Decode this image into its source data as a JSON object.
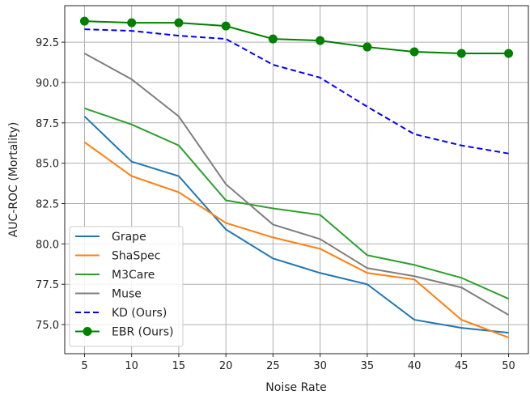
{
  "chart_data": {
    "type": "line",
    "xlabel": "Noise Rate",
    "ylabel": "AUC-ROC (Mortality)",
    "x": [
      5,
      10,
      15,
      20,
      25,
      30,
      35,
      40,
      45,
      50
    ],
    "xlim": [
      2.9,
      52.1
    ],
    "ylim": [
      73.2,
      94.76
    ],
    "xticks": [
      "5",
      "10",
      "15",
      "20",
      "25",
      "30",
      "35",
      "40",
      "45",
      "50"
    ],
    "yticks": [
      "75.0",
      "77.5",
      "80.0",
      "82.5",
      "85.0",
      "87.5",
      "90.0",
      "92.5"
    ],
    "grid": true,
    "legend_position": "lower-left",
    "series": [
      {
        "name": "Grape",
        "color": "#1f77b4",
        "style": "solid",
        "marker": false,
        "values": [
          87.9,
          85.1,
          84.2,
          80.9,
          79.1,
          78.2,
          77.5,
          75.3,
          74.8,
          74.5
        ]
      },
      {
        "name": "ShaSpec",
        "color": "#ff7f0e",
        "style": "solid",
        "marker": false,
        "values": [
          86.3,
          84.2,
          83.2,
          81.3,
          80.4,
          79.7,
          78.2,
          77.8,
          75.3,
          74.2
        ]
      },
      {
        "name": "M3Care",
        "color": "#2ca02c",
        "style": "solid",
        "marker": false,
        "values": [
          88.4,
          87.4,
          86.1,
          82.7,
          82.2,
          81.8,
          79.3,
          78.7,
          77.9,
          76.6
        ]
      },
      {
        "name": "Muse",
        "color": "#7f7f7f",
        "style": "solid",
        "marker": false,
        "values": [
          91.8,
          90.2,
          87.9,
          83.7,
          81.2,
          80.3,
          78.5,
          78.0,
          77.3,
          75.6
        ]
      },
      {
        "name": "KD (Ours)",
        "color": "#0000ff",
        "style": "dashed",
        "marker": false,
        "values": [
          93.3,
          93.2,
          92.9,
          92.7,
          91.1,
          90.3,
          88.5,
          86.8,
          86.1,
          85.6
        ]
      },
      {
        "name": "EBR (Ours)",
        "color": "#008000",
        "style": "solid",
        "marker": true,
        "values": [
          93.8,
          93.7,
          93.7,
          93.5,
          92.7,
          92.6,
          92.2,
          91.9,
          91.8,
          91.8
        ]
      }
    ]
  }
}
